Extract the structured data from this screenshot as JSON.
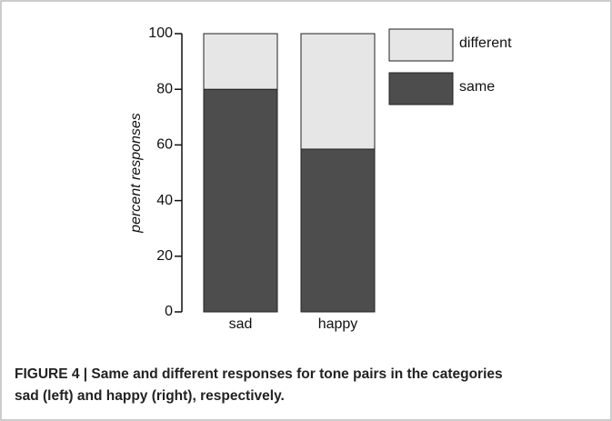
{
  "chart_data": {
    "type": "stacked_bar",
    "ylabel": "percent responses",
    "categories": [
      "sad",
      "happy"
    ],
    "series": [
      {
        "name": "same",
        "color": "#4d4d4d",
        "values": [
          80,
          58.5
        ]
      },
      {
        "name": "different",
        "color": "#e6e6e6",
        "values": [
          20,
          41.5
        ]
      }
    ],
    "ylim": [
      0,
      100
    ],
    "yticks": [
      0,
      20,
      40,
      60,
      80,
      100
    ]
  },
  "caption": "FIGURE 4 | Same and different responses for tone pairs in the categories sad (left) and happy (right), respectively."
}
